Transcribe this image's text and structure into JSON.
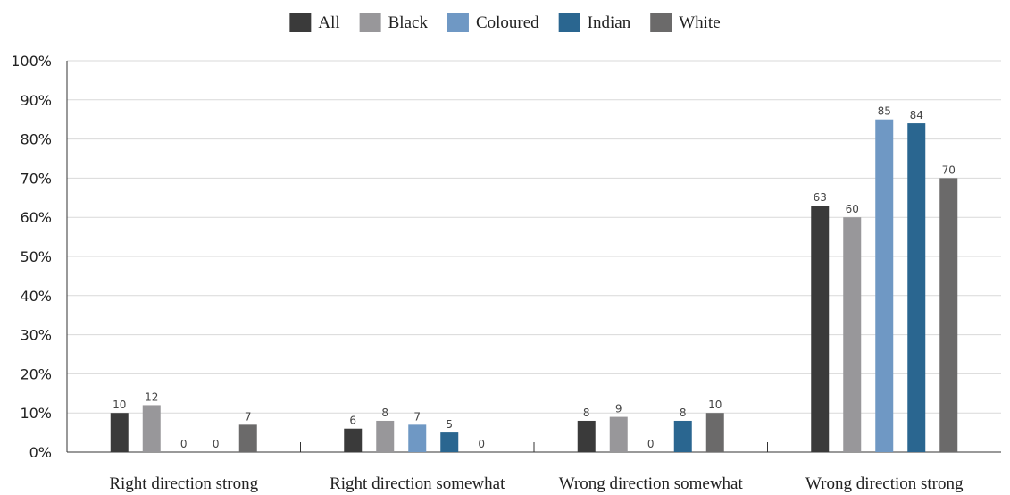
{
  "chart_data": {
    "type": "bar",
    "categories": [
      "Right direction strong",
      "Right direction somewhat",
      "Wrong direction somewhat",
      "Wrong direction strong"
    ],
    "series": [
      {
        "name": "All",
        "color": "#3a3a3a",
        "values": [
          10,
          6,
          8,
          63
        ]
      },
      {
        "name": "Black",
        "color": "#98979a",
        "values": [
          12,
          8,
          9,
          60
        ]
      },
      {
        "name": "Coloured",
        "color": "#6f98c4",
        "values": [
          0,
          7,
          0,
          85
        ]
      },
      {
        "name": "Indian",
        "color": "#2a6690",
        "values": [
          0,
          5,
          8,
          84
        ]
      },
      {
        "name": "White",
        "color": "#6b6a6a",
        "values": [
          7,
          0,
          10,
          70
        ]
      }
    ],
    "y_ticks": [
      "0%",
      "10%",
      "20%",
      "30%",
      "40%",
      "50%",
      "60%",
      "70%",
      "80%",
      "90%",
      "100%"
    ],
    "ylim": [
      0,
      100
    ],
    "title": "",
    "xlabel": "",
    "ylabel": "",
    "grid": true,
    "legend_position": "top-center",
    "data_labels": true
  }
}
